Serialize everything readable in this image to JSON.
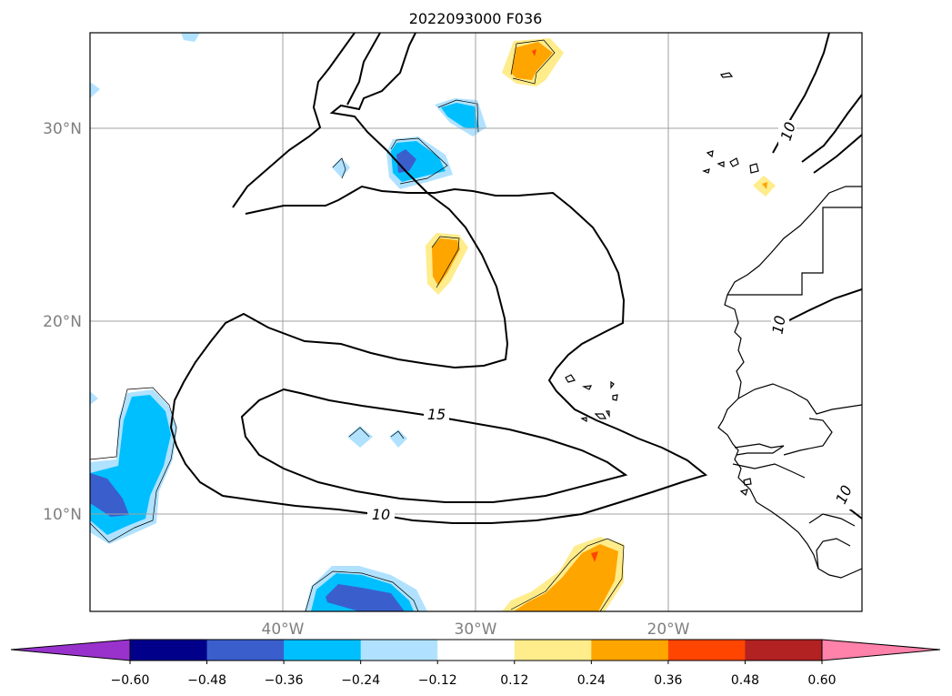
{
  "title": "2022093000 F036",
  "lat_labels": [
    "30°N",
    "20°N",
    "10°N"
  ],
  "lon_labels": [
    "40°W",
    "30°W",
    "20°W"
  ],
  "contour_labels": [
    "15",
    "10",
    "10",
    "10",
    "10"
  ],
  "colorbar": {
    "ticks": [
      "−0.60",
      "−0.48",
      "−0.36",
      "−0.24",
      "−0.12",
      "0.12",
      "0.24",
      "0.36",
      "0.48",
      "0.60"
    ],
    "colors": [
      "#9932cc",
      "#00008b",
      "#3a5fcd",
      "#00bfff",
      "#b0e2ff",
      "#ffffff",
      "#ffec8b",
      "#ffa500",
      "#ff4500",
      "#b22222",
      "#ff82ab"
    ]
  },
  "colors": {
    "light_blue": "#b0e2ff",
    "sky_blue": "#00bfff",
    "royal_blue": "#3a5fcd",
    "light_yellow": "#ffec8b",
    "orange": "#ffa500",
    "red_orange": "#ff4500",
    "grid": "#a0a0a0"
  }
}
